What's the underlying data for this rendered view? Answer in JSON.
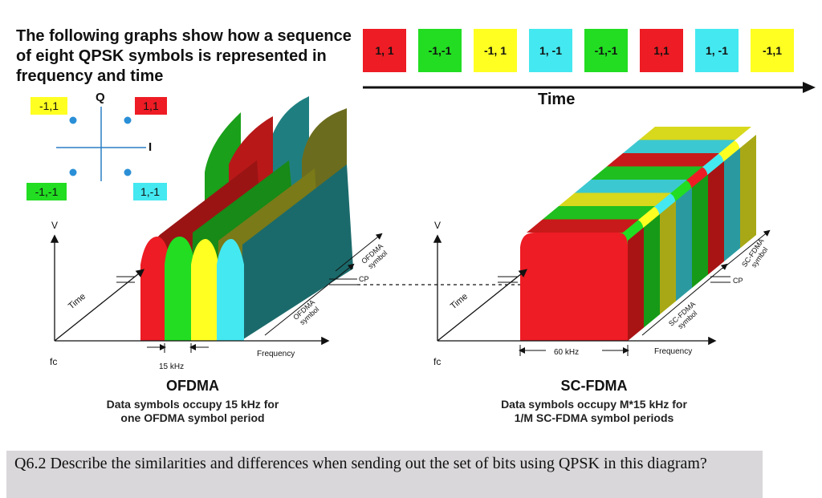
{
  "title": "The following graphs show how a sequence of eight QPSK symbols is represented in frequency and time",
  "time_sequence": {
    "symbols": [
      {
        "label": "1, 1",
        "color": "#ee1c24"
      },
      {
        "label": "-1,-1",
        "color": "#22dd22"
      },
      {
        "label": "-1, 1",
        "color": "#ffff22"
      },
      {
        "label": "1, -1",
        "color": "#44e8f0"
      },
      {
        "label": "-1,-1",
        "color": "#22dd22"
      },
      {
        "label": "1,1",
        "color": "#ee1c24"
      },
      {
        "label": "1, -1",
        "color": "#44e8f0"
      },
      {
        "label": "-1,1",
        "color": "#ffff22"
      }
    ],
    "axis_label": "Time"
  },
  "constellation": {
    "q_label": "Q",
    "i_label": "I",
    "points": [
      {
        "label": "-1,1",
        "color": "#ffff22"
      },
      {
        "label": "1,1",
        "color": "#ee1c24"
      },
      {
        "label": "-1,-1",
        "color": "#22dd22"
      },
      {
        "label": "1,-1",
        "color": "#44e8f0"
      }
    ]
  },
  "ofdma": {
    "v_label": "V",
    "time_label": "Time",
    "fc_label": "fc",
    "frequency_label": "Frequency",
    "bw_label": "15 kHz",
    "symbol_label_top": "OFDMA symbol",
    "symbol_label_bottom": "OFDMA symbol",
    "cp_label": "CP",
    "caption_title": "OFDMA",
    "caption_desc_line1": "Data symbols occupy 15 kHz for",
    "caption_desc_line2": "one OFDMA symbol period"
  },
  "scfdma": {
    "v_label": "V",
    "time_label": "Time",
    "fc_label": "fc",
    "frequency_label": "Frequency",
    "bw_label": "60 kHz",
    "symbol_label_top": "SC-FDMA symbol",
    "symbol_label_bottom": "SC-FDMA symbol",
    "cp_label": "CP",
    "caption_title": "SC-FDMA",
    "caption_desc_line1": "Data symbols occupy M*15 kHz for",
    "caption_desc_line2": "1/M SC-FDMA symbol periods"
  },
  "question": "Q6.2 Describe the similarities and differences when sending out the set of bits using QPSK in this diagram?",
  "colors": {
    "red": "#ee1c24",
    "green": "#22dd22",
    "yellow": "#ffff22",
    "cyan": "#44e8f0",
    "accent": "#2288cc"
  }
}
